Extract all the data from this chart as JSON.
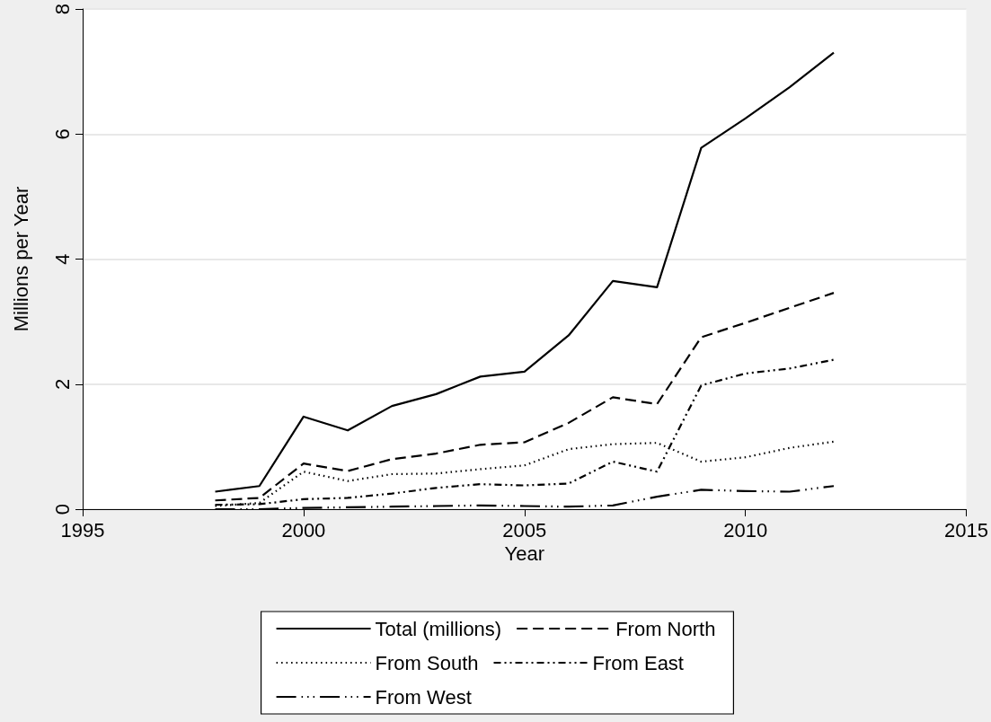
{
  "chart_data": {
    "type": "line",
    "xlabel": "Year",
    "ylabel": "Millions per Year",
    "x": [
      1998,
      1999,
      2000,
      2001,
      2002,
      2003,
      2004,
      2005,
      2006,
      2007,
      2008,
      2009,
      2010,
      2011,
      2012
    ],
    "series": [
      {
        "name": "Total (millions)",
        "color": "#000000",
        "line_style": "solid",
        "values": [
          0.28,
          0.37,
          1.48,
          1.26,
          1.65,
          1.84,
          2.12,
          2.2,
          2.78,
          3.65,
          3.55,
          5.78,
          6.25,
          6.75,
          7.3
        ]
      },
      {
        "name": "From North",
        "color": "#000000",
        "line_style": "dashed",
        "values": [
          0.14,
          0.18,
          0.73,
          0.61,
          0.8,
          0.89,
          1.03,
          1.07,
          1.38,
          1.79,
          1.68,
          2.75,
          2.98,
          3.22,
          3.46
        ]
      },
      {
        "name": "From South",
        "color": "#000000",
        "line_style": "dotted",
        "values": [
          0.05,
          0.1,
          0.6,
          0.45,
          0.56,
          0.57,
          0.64,
          0.7,
          0.96,
          1.04,
          1.06,
          0.76,
          0.83,
          0.98,
          1.08
        ]
      },
      {
        "name": "From East",
        "color": "#000000",
        "line_style": "dashdot",
        "values": [
          0.07,
          0.08,
          0.16,
          0.18,
          0.25,
          0.34,
          0.4,
          0.38,
          0.41,
          0.76,
          0.6,
          1.98,
          2.17,
          2.25,
          2.39
        ]
      },
      {
        "name": "From West",
        "color": "#000000",
        "line_style": "longdashdotdot",
        "values": [
          0.0,
          0.0,
          0.02,
          0.03,
          0.04,
          0.05,
          0.06,
          0.05,
          0.04,
          0.06,
          0.2,
          0.31,
          0.29,
          0.28,
          0.37
        ]
      }
    ],
    "xlim": [
      1995,
      2015
    ],
    "xticks": [
      1995,
      2000,
      2005,
      2010,
      2015
    ],
    "ylim": [
      0,
      8
    ],
    "yticks": [
      0,
      2,
      4,
      6,
      8
    ],
    "grid": "y",
    "legend": "bottom",
    "marker": "none"
  }
}
